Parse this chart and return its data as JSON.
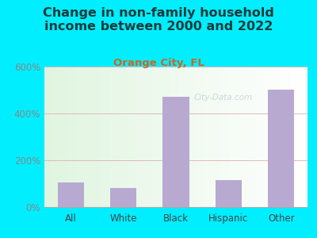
{
  "title": "Change in non-family household\nincome between 2000 and 2022",
  "subtitle": "Orange City, FL",
  "categories": [
    "All",
    "White",
    "Black",
    "Hispanic",
    "Other"
  ],
  "values": [
    105,
    82,
    470,
    115,
    500
  ],
  "bar_color": "#b8a9d0",
  "title_fontsize": 11.5,
  "subtitle_fontsize": 9.5,
  "subtitle_color": "#cc6622",
  "title_color": "#1a3a3a",
  "background_outer": "#00eeff",
  "ytick_color": "#888888",
  "xtick_color": "#444444",
  "ylim": [
    0,
    600
  ],
  "yticks": [
    0,
    200,
    400,
    600
  ],
  "ytick_labels": [
    "0%",
    "200%",
    "400%",
    "600%"
  ],
  "watermark": "City-Data.com",
  "grid_color": "#ddbbbb",
  "axis_color": "#aaaaaa",
  "plot_bg_colors": [
    "#e8f5e8",
    "#f8fdf5",
    "#f0fafa",
    "#ffffff"
  ],
  "bar_width": 0.5
}
